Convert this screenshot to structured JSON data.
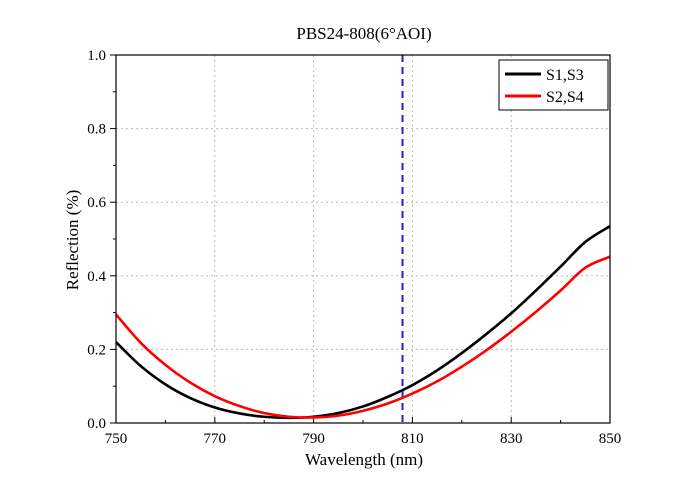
{
  "chart_data": {
    "type": "line",
    "title": "PBS24-808(6°AOI)",
    "xlabel": "Wavelength (nm)",
    "ylabel": "Reflection (%)",
    "xlim": [
      750,
      850
    ],
    "ylim": [
      0,
      1.0
    ],
    "xticks": [
      750,
      770,
      790,
      810,
      830,
      850
    ],
    "yticks": [
      0.0,
      0.2,
      0.4,
      0.6,
      0.8,
      1.0
    ],
    "xtick_labels": [
      "750",
      "770",
      "790",
      "810",
      "830",
      "850"
    ],
    "ytick_labels": [
      "0.0",
      "0.2",
      "0.4",
      "0.6",
      "0.8",
      "1.0"
    ],
    "grid": true,
    "legend_position": "top-right",
    "reference_line": {
      "x": 808,
      "style": "dashed",
      "color": "#1f1fd6"
    },
    "series": [
      {
        "name": "S1,S3",
        "color": "#000000",
        "x": [
          750,
          755,
          760,
          765,
          770,
          775,
          780,
          785,
          790,
          795,
          800,
          805,
          810,
          815,
          820,
          825,
          830,
          835,
          840,
          845,
          850
        ],
        "y": [
          0.22,
          0.155,
          0.105,
          0.068,
          0.042,
          0.026,
          0.017,
          0.014,
          0.017,
          0.027,
          0.045,
          0.071,
          0.103,
          0.143,
          0.19,
          0.242,
          0.298,
          0.36,
          0.425,
          0.492,
          0.535
        ]
      },
      {
        "name": "S2,S4",
        "color": "#ff0000",
        "x": [
          750,
          755,
          760,
          765,
          770,
          775,
          780,
          785,
          790,
          795,
          800,
          805,
          810,
          815,
          820,
          825,
          830,
          835,
          840,
          845,
          850
        ],
        "y": [
          0.295,
          0.218,
          0.158,
          0.11,
          0.073,
          0.046,
          0.027,
          0.017,
          0.015,
          0.02,
          0.033,
          0.053,
          0.08,
          0.113,
          0.153,
          0.198,
          0.248,
          0.302,
          0.36,
          0.422,
          0.452
        ]
      }
    ]
  }
}
